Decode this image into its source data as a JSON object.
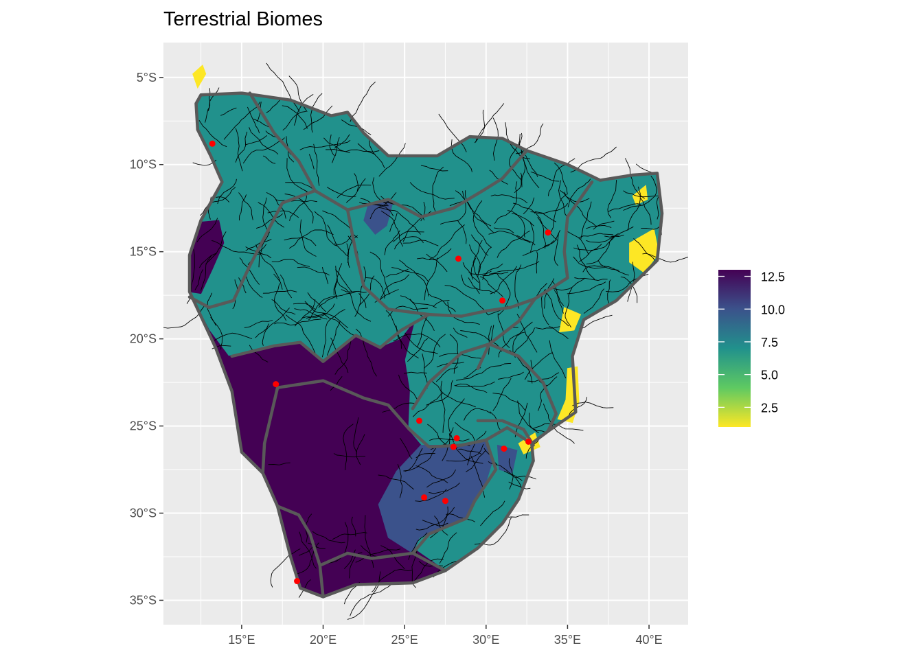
{
  "title": "Terrestrial Biomes",
  "colors": {
    "panel_bg": "#ebebeb",
    "grid": "#ffffff",
    "basin_border": "#595959",
    "river": "#000000",
    "points": "#ff0000",
    "viridis": [
      "#fde725",
      "#5ec962",
      "#21918c",
      "#3b528b",
      "#440154"
    ]
  },
  "chart_data": {
    "type": "map",
    "title": "Terrestrial Biomes",
    "xlabel": "",
    "ylabel": "",
    "x_ticks": [
      "15°E",
      "20°E",
      "25°E",
      "30°E",
      "35°E",
      "40°E"
    ],
    "y_ticks": [
      "5°S",
      "10°S",
      "15°S",
      "20°S",
      "25°S",
      "30°S",
      "35°S"
    ],
    "x_tick_values": [
      15,
      20,
      25,
      30,
      35,
      40
    ],
    "y_tick_values": [
      -5,
      -10,
      -15,
      -20,
      -25,
      -30,
      -35
    ],
    "xlim": [
      10.2,
      42.4
    ],
    "ylim": [
      -36.4,
      -3.0
    ],
    "grid": true,
    "legend": {
      "placement": "right",
      "type": "colorbar",
      "range": [
        1,
        13
      ],
      "labels": [
        "12.5",
        "10.0",
        "7.5",
        "5.0",
        "2.5"
      ],
      "label_values": [
        12.5,
        10.0,
        7.5,
        5.0,
        2.5
      ]
    },
    "points": [
      {
        "lon": 13.2,
        "lat": -8.8
      },
      {
        "lon": 17.1,
        "lat": -22.6
      },
      {
        "lon": 18.4,
        "lat": -33.9
      },
      {
        "lon": 28.3,
        "lat": -15.4
      },
      {
        "lon": 33.8,
        "lat": -13.9
      },
      {
        "lon": 31.0,
        "lat": -17.8
      },
      {
        "lon": 25.9,
        "lat": -24.7
      },
      {
        "lon": 28.2,
        "lat": -25.7
      },
      {
        "lon": 28.0,
        "lat": -26.2
      },
      {
        "lon": 31.1,
        "lat": -26.3
      },
      {
        "lon": 32.6,
        "lat": -25.9
      },
      {
        "lon": 26.2,
        "lat": -29.1
      },
      {
        "lon": 27.5,
        "lat": -29.3
      }
    ],
    "regions": [
      {
        "name_hidden": "",
        "value": 7.0,
        "outline": [
          [
            12.5,
            -6
          ],
          [
            15,
            -5.9
          ],
          [
            18,
            -6.3
          ],
          [
            20.5,
            -7.2
          ],
          [
            21.5,
            -7
          ],
          [
            22.5,
            -8.2
          ],
          [
            24,
            -9.5
          ],
          [
            27,
            -9.5
          ],
          [
            29,
            -8.4
          ],
          [
            31,
            -8.5
          ],
          [
            32.5,
            -9.2
          ],
          [
            35,
            -10
          ],
          [
            37,
            -10.9
          ],
          [
            39,
            -10.6
          ],
          [
            40.5,
            -10.5
          ],
          [
            40.8,
            -12.8
          ],
          [
            40.5,
            -15.5
          ],
          [
            38,
            -17.8
          ],
          [
            36,
            -18.9
          ],
          [
            35.3,
            -21
          ],
          [
            35.5,
            -24.2
          ],
          [
            33.8,
            -25.3
          ],
          [
            32.8,
            -26
          ],
          [
            32.9,
            -27
          ],
          [
            32,
            -29.2
          ],
          [
            31,
            -30.6
          ],
          [
            29.5,
            -32
          ],
          [
            27.5,
            -33.3
          ],
          [
            25.5,
            -34
          ],
          [
            22,
            -34.1
          ],
          [
            20,
            -34.8
          ],
          [
            18.6,
            -34.3
          ],
          [
            18,
            -32.5
          ],
          [
            17.2,
            -29.6
          ],
          [
            16.3,
            -27.7
          ],
          [
            15,
            -26.5
          ],
          [
            14.4,
            -23
          ],
          [
            13.4,
            -20.5
          ],
          [
            11.8,
            -17.3
          ],
          [
            11.8,
            -15.2
          ],
          [
            12.5,
            -13.2
          ],
          [
            13.8,
            -11
          ],
          [
            13.1,
            -9.5
          ],
          [
            12.3,
            -8
          ],
          [
            12.2,
            -6.5
          ]
        ]
      },
      {
        "value": 12.9,
        "outline": [
          [
            11.8,
            -17.3
          ],
          [
            13,
            -19.5
          ],
          [
            14.2,
            -21
          ],
          [
            15.5,
            -20.7
          ],
          [
            17,
            -20.4
          ],
          [
            18.6,
            -20.2
          ],
          [
            20,
            -21.3
          ],
          [
            22,
            -19.8
          ],
          [
            23.5,
            -20.5
          ],
          [
            24.8,
            -20
          ],
          [
            25.6,
            -19
          ],
          [
            25,
            -21.2
          ],
          [
            25.3,
            -23
          ],
          [
            25.2,
            -25.2
          ],
          [
            26,
            -26.1
          ],
          [
            24.5,
            -27.6
          ],
          [
            23.4,
            -29.5
          ],
          [
            24,
            -31.4
          ],
          [
            25.5,
            -32
          ],
          [
            27.5,
            -33.3
          ],
          [
            25.5,
            -34
          ],
          [
            22,
            -34.1
          ],
          [
            20,
            -34.8
          ],
          [
            18.6,
            -34.3
          ],
          [
            18,
            -32.5
          ],
          [
            17.2,
            -29.6
          ],
          [
            16.3,
            -27.7
          ],
          [
            15,
            -26.5
          ],
          [
            14.4,
            -23
          ],
          [
            13.4,
            -20.5
          ]
        ]
      },
      {
        "value": 12.9,
        "outline": [
          [
            12.5,
            -13.3
          ],
          [
            13.6,
            -13.2
          ],
          [
            13.9,
            -14.5
          ],
          [
            13.2,
            -16
          ],
          [
            12.5,
            -17.4
          ],
          [
            11.8,
            -17.3
          ],
          [
            11.9,
            -15
          ]
        ]
      },
      {
        "value": 10.5,
        "outline": [
          [
            26,
            -26.1
          ],
          [
            28,
            -26.1
          ],
          [
            30,
            -25.8
          ],
          [
            30.4,
            -27
          ],
          [
            30,
            -28.2
          ],
          [
            29.3,
            -29.3
          ],
          [
            28.8,
            -30.3
          ],
          [
            27.5,
            -30.8
          ],
          [
            25.9,
            -31.4
          ],
          [
            25.5,
            -32.3
          ],
          [
            24,
            -31.4
          ],
          [
            23.4,
            -29.5
          ],
          [
            24.5,
            -27.6
          ]
        ]
      },
      {
        "value": 10.5,
        "outline": [
          [
            30.7,
            -26.1
          ],
          [
            31.9,
            -26.4
          ],
          [
            31.6,
            -27.7
          ],
          [
            30.8,
            -27.5
          ]
        ]
      },
      {
        "value": 10.0,
        "outline": [
          [
            22.8,
            -12.2
          ],
          [
            24.3,
            -12.1
          ],
          [
            23.9,
            -13.5
          ],
          [
            23.2,
            -14
          ],
          [
            22.5,
            -13.2
          ]
        ]
      },
      {
        "value": 1.0,
        "outline": [
          [
            38.8,
            -14.5
          ],
          [
            40.3,
            -13.7
          ],
          [
            40.6,
            -15.1
          ],
          [
            39.7,
            -16.2
          ],
          [
            38.8,
            -15.6
          ]
        ]
      },
      {
        "value": 1.0,
        "outline": [
          [
            34.8,
            -18.2
          ],
          [
            35.8,
            -18.6
          ],
          [
            35.4,
            -19.5
          ],
          [
            34.5,
            -19.6
          ]
        ]
      },
      {
        "value": 1.0,
        "outline": [
          [
            35.0,
            -21.7
          ],
          [
            35.6,
            -21.6
          ],
          [
            35.7,
            -23.6
          ],
          [
            35.3,
            -24.8
          ],
          [
            34.4,
            -24.6
          ],
          [
            34.9,
            -23.5
          ]
        ]
      },
      {
        "value": 1.0,
        "outline": [
          [
            32.0,
            -26.0
          ],
          [
            33.0,
            -25.4
          ],
          [
            33.3,
            -26.2
          ],
          [
            32.3,
            -26.6
          ]
        ]
      },
      {
        "value": 1.0,
        "outline": [
          [
            39.0,
            -11.8
          ],
          [
            39.8,
            -11.2
          ],
          [
            39.9,
            -12
          ],
          [
            39.2,
            -12.3
          ]
        ]
      },
      {
        "value": 1.0,
        "outline": [
          [
            12.0,
            -4.8
          ],
          [
            12.6,
            -4.3
          ],
          [
            12.8,
            -4.8
          ],
          [
            12.3,
            -5.6
          ]
        ]
      }
    ],
    "basins": [
      [
        [
          12.5,
          -6
        ],
        [
          15,
          -5.9
        ],
        [
          18,
          -6.3
        ],
        [
          20.5,
          -7.2
        ],
        [
          21.5,
          -7
        ],
        [
          22.5,
          -8.2
        ],
        [
          24,
          -9.5
        ],
        [
          27,
          -9.5
        ],
        [
          29,
          -8.4
        ],
        [
          31,
          -8.5
        ],
        [
          32.5,
          -9.2
        ],
        [
          35,
          -10
        ],
        [
          37,
          -10.9
        ],
        [
          39,
          -10.6
        ],
        [
          40.5,
          -10.5
        ],
        [
          40.8,
          -12.8
        ],
        [
          40.5,
          -15.5
        ],
        [
          38,
          -17.8
        ],
        [
          36,
          -18.9
        ],
        [
          35.3,
          -21
        ],
        [
          35.5,
          -24.2
        ],
        [
          33.8,
          -25.3
        ],
        [
          32.8,
          -26
        ],
        [
          32.9,
          -27
        ],
        [
          32,
          -29.2
        ],
        [
          31,
          -30.6
        ],
        [
          29.5,
          -32
        ],
        [
          27.5,
          -33.3
        ],
        [
          25.5,
          -34
        ],
        [
          22,
          -34.1
        ],
        [
          20,
          -34.8
        ],
        [
          18.6,
          -34.3
        ],
        [
          18,
          -32.5
        ],
        [
          17.2,
          -29.6
        ],
        [
          16.3,
          -27.7
        ],
        [
          15,
          -26.5
        ],
        [
          14.4,
          -23
        ],
        [
          13.4,
          -20.5
        ],
        [
          11.8,
          -17.3
        ],
        [
          11.8,
          -15.2
        ],
        [
          12.5,
          -13.2
        ],
        [
          13.8,
          -11
        ],
        [
          13.1,
          -9.5
        ],
        [
          12.3,
          -8
        ],
        [
          12.2,
          -6.5
        ],
        [
          12.5,
          -6
        ]
      ],
      [
        [
          15.5,
          -5.9
        ],
        [
          17,
          -8.2
        ],
        [
          18.5,
          -9.8
        ],
        [
          19.5,
          -11.5
        ],
        [
          21.5,
          -12.6
        ],
        [
          24,
          -12
        ],
        [
          26,
          -13
        ],
        [
          28,
          -12.5
        ],
        [
          29.8,
          -11.5
        ],
        [
          31,
          -10.8
        ],
        [
          32.5,
          -9.2
        ]
      ],
      [
        [
          19.5,
          -11.5
        ],
        [
          17.5,
          -12.2
        ],
        [
          16.5,
          -14
        ],
        [
          15.5,
          -15.8
        ],
        [
          14.5,
          -17.8
        ],
        [
          13,
          -18.2
        ],
        [
          11.8,
          -17.6
        ]
      ],
      [
        [
          21.5,
          -12.6
        ],
        [
          22,
          -15
        ],
        [
          22.5,
          -17
        ],
        [
          24,
          -18.3
        ],
        [
          26.5,
          -18.6
        ],
        [
          28.5,
          -18.7
        ],
        [
          30,
          -18.4
        ],
        [
          31.5,
          -18.2
        ],
        [
          33,
          -17.7
        ]
      ],
      [
        [
          36.5,
          -11
        ],
        [
          35,
          -13
        ],
        [
          34.8,
          -15
        ],
        [
          35,
          -16.5
        ],
        [
          33,
          -17.7
        ],
        [
          32,
          -19
        ],
        [
          30.2,
          -20.3
        ],
        [
          29.5,
          -21.7
        ]
      ],
      [
        [
          14.4,
          -21
        ],
        [
          17,
          -20.4
        ],
        [
          18.6,
          -20.2
        ],
        [
          20,
          -21.3
        ],
        [
          22,
          -19.8
        ],
        [
          23.5,
          -20.5
        ],
        [
          24.8,
          -19.5
        ],
        [
          26.5,
          -18.6
        ]
      ],
      [
        [
          25.5,
          -24
        ],
        [
          26.5,
          -22.5
        ],
        [
          28.5,
          -20.8
        ],
        [
          30.2,
          -20.3
        ],
        [
          32,
          -21
        ],
        [
          33.5,
          -22.5
        ],
        [
          34.3,
          -24.3
        ],
        [
          33.8,
          -25.3
        ]
      ],
      [
        [
          17.2,
          -22.8
        ],
        [
          20,
          -22.4
        ],
        [
          22.5,
          -23.4
        ],
        [
          24,
          -23.8
        ],
        [
          25.3,
          -25.2
        ],
        [
          26.5,
          -26.2
        ],
        [
          28.5,
          -26.1
        ],
        [
          30,
          -25.8
        ],
        [
          31.3,
          -25.1
        ],
        [
          32.8,
          -26
        ]
      ],
      [
        [
          17.2,
          -22.8
        ],
        [
          16.4,
          -26
        ],
        [
          16.3,
          -27.7
        ]
      ],
      [
        [
          17.2,
          -29.6
        ],
        [
          18.5,
          -30.1
        ],
        [
          19.2,
          -31.2
        ],
        [
          19.8,
          -33
        ],
        [
          20,
          -34.8
        ]
      ],
      [
        [
          19.8,
          -33
        ],
        [
          21.5,
          -32.3
        ],
        [
          23,
          -32.6
        ],
        [
          25.5,
          -32.3
        ],
        [
          27.5,
          -33.3
        ]
      ],
      [
        [
          30,
          -25.8
        ],
        [
          30.6,
          -27.5
        ],
        [
          29.3,
          -29.3
        ],
        [
          28.8,
          -30.3
        ],
        [
          26.5,
          -31.2
        ],
        [
          25.5,
          -32.3
        ]
      ],
      [
        [
          29.5,
          -24.7
        ],
        [
          31,
          -24.7
        ],
        [
          32.3,
          -25.2
        ],
        [
          32.9,
          -26.1
        ]
      ]
    ]
  }
}
